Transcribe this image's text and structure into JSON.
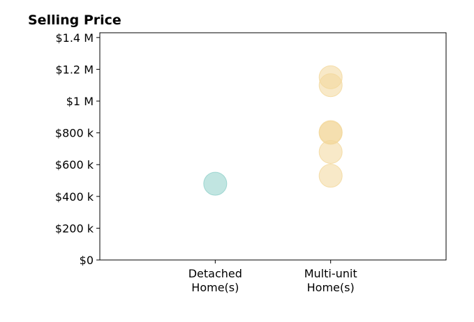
{
  "chart_data": {
    "type": "scatter",
    "title": "Selling Price",
    "xlabel": "",
    "ylabel": "",
    "categories": [
      "Detached\nHome(s)",
      "Multi-unit\nHome(s)"
    ],
    "xlim": [
      -1,
      2
    ],
    "ylim": [
      0,
      1430000
    ],
    "y_ticks": [
      0,
      200000,
      400000,
      600000,
      800000,
      1000000,
      1200000,
      1400000
    ],
    "y_tick_labels": [
      "$0",
      "$200 k",
      "$400 k",
      "$600 k",
      "$800 k",
      "$1 M",
      "$1.2 M",
      "$1.4 M"
    ],
    "grid": false,
    "series": [
      {
        "category": 0,
        "color": "#8ecfc9",
        "values": [
          480000
        ]
      },
      {
        "category": 1,
        "color": "#f2d79a",
        "values": [
          530000,
          680000,
          800000,
          805000,
          1100000,
          1150000
        ]
      }
    ]
  }
}
